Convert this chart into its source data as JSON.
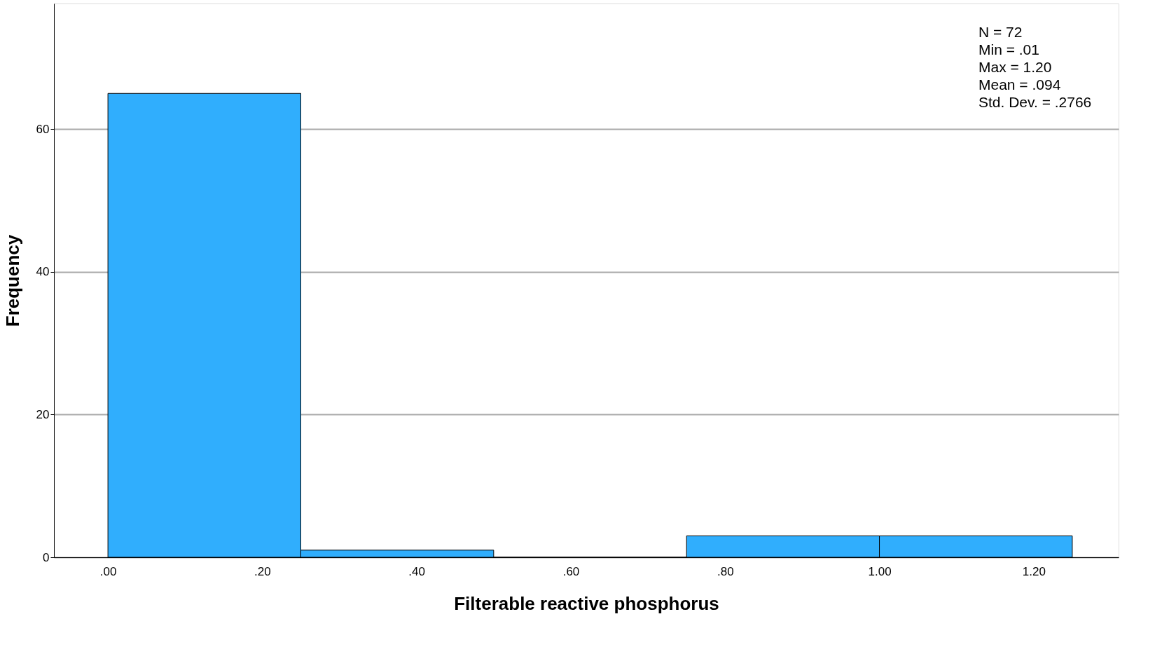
{
  "chart_data": {
    "type": "histogram",
    "xlabel": "Filterable reactive phosphorus",
    "ylabel": "Frequency",
    "bins": [
      0,
      0.25,
      0.5,
      0.75,
      1.0,
      1.25
    ],
    "values": [
      65,
      1,
      0,
      3,
      3
    ],
    "color": "#30aefd",
    "xlim": [
      -0.07,
      1.31
    ],
    "ylim": [
      0,
      77.6
    ],
    "xticks": [
      {
        "value": 0,
        "label": ".00"
      },
      {
        "value": 0.2,
        "label": ".20"
      },
      {
        "value": 0.4,
        "label": ".40"
      },
      {
        "value": 0.6,
        "label": ".60"
      },
      {
        "value": 0.8,
        "label": ".80"
      },
      {
        "value": 1.0,
        "label": "1.00"
      },
      {
        "value": 1.2,
        "label": "1.20"
      }
    ],
    "yticks": [
      0,
      20,
      40,
      60
    ],
    "grid": "y",
    "annotations": [
      "N = 72",
      "Min = .01",
      "Max = 1.20",
      "Mean = .094",
      "Std. Dev. = .2766"
    ]
  }
}
